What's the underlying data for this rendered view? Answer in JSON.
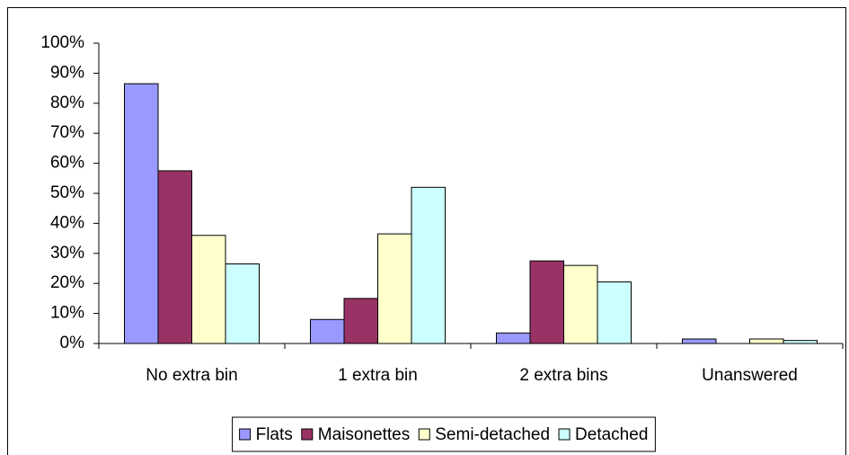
{
  "chart_data": {
    "type": "bar",
    "categories": [
      "No extra bin",
      "1 extra bin",
      "2 extra bins",
      "Unanswered"
    ],
    "series": [
      {
        "name": "Flats",
        "color": "#9999ff",
        "values": [
          86.5,
          8,
          3.5,
          1.5
        ]
      },
      {
        "name": "Maisonettes",
        "color": "#993366",
        "values": [
          57.5,
          15,
          27.5,
          0
        ]
      },
      {
        "name": "Semi-detached",
        "color": "#ffffcc",
        "values": [
          36,
          36.5,
          26,
          1.5
        ]
      },
      {
        "name": "Detached",
        "color": "#ccffff",
        "values": [
          26.5,
          52,
          20.5,
          1
        ]
      }
    ],
    "ylim": [
      0,
      100
    ],
    "yticks": [
      {
        "value": 0,
        "label": "0%"
      },
      {
        "value": 10,
        "label": "10%"
      },
      {
        "value": 20,
        "label": "20%"
      },
      {
        "value": 30,
        "label": "30%"
      },
      {
        "value": 40,
        "label": "40%"
      },
      {
        "value": 50,
        "label": "50%"
      },
      {
        "value": 60,
        "label": "60%"
      },
      {
        "value": 70,
        "label": "70%"
      },
      {
        "value": 80,
        "label": "80%"
      },
      {
        "value": 90,
        "label": "90%"
      },
      {
        "value": 100,
        "label": "100%"
      }
    ],
    "grid": false,
    "legend": "bottom"
  }
}
